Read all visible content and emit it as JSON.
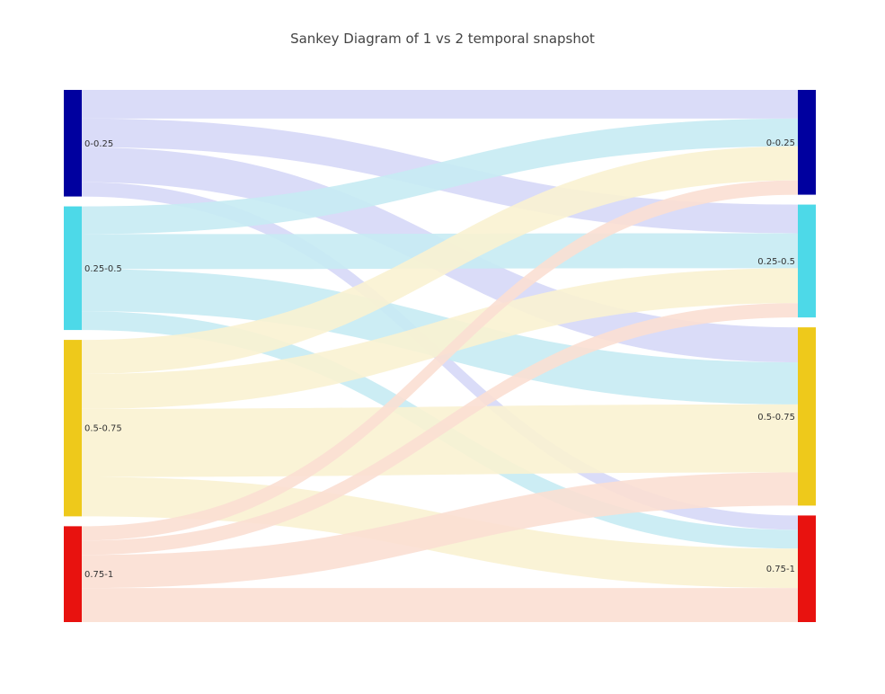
{
  "title": "Sankey Diagram of 1 vs 2 temporal snapshot",
  "chart_data": {
    "type": "sankey",
    "source_nodes": [
      {
        "label": "0-0.25",
        "color": "#00009f"
      },
      {
        "label": "0.25-0.5",
        "color": "#4dd9e8"
      },
      {
        "label": "0.5-0.75",
        "color": "#eec91b"
      },
      {
        "label": "0.75-1",
        "color": "#e8120f"
      }
    ],
    "target_nodes": [
      {
        "label": "0-0.25",
        "color": "#00009f"
      },
      {
        "label": "0.25-0.5",
        "color": "#4dd9e8"
      },
      {
        "label": "0.5-0.75",
        "color": "#eec91b"
      },
      {
        "label": "0.75-1",
        "color": "#e8120f"
      }
    ],
    "link_colors": [
      "#d6d8f7",
      "#c6ebf3",
      "#faf2d2",
      "#fbdfd3"
    ],
    "links": [
      {
        "source": 0,
        "target": 0,
        "value": 32
      },
      {
        "source": 0,
        "target": 1,
        "value": 32
      },
      {
        "source": 0,
        "target": 2,
        "value": 39
      },
      {
        "source": 0,
        "target": 3,
        "value": 16
      },
      {
        "source": 1,
        "target": 0,
        "value": 31
      },
      {
        "source": 1,
        "target": 1,
        "value": 39
      },
      {
        "source": 1,
        "target": 2,
        "value": 47
      },
      {
        "source": 1,
        "target": 3,
        "value": 21
      },
      {
        "source": 2,
        "target": 0,
        "value": 38
      },
      {
        "source": 2,
        "target": 1,
        "value": 39
      },
      {
        "source": 2,
        "target": 2,
        "value": 76
      },
      {
        "source": 2,
        "target": 3,
        "value": 44
      },
      {
        "source": 3,
        "target": 0,
        "value": 16
      },
      {
        "source": 3,
        "target": 1,
        "value": 16
      },
      {
        "source": 3,
        "target": 2,
        "value": 37
      },
      {
        "source": 3,
        "target": 3,
        "value": 38
      }
    ]
  }
}
